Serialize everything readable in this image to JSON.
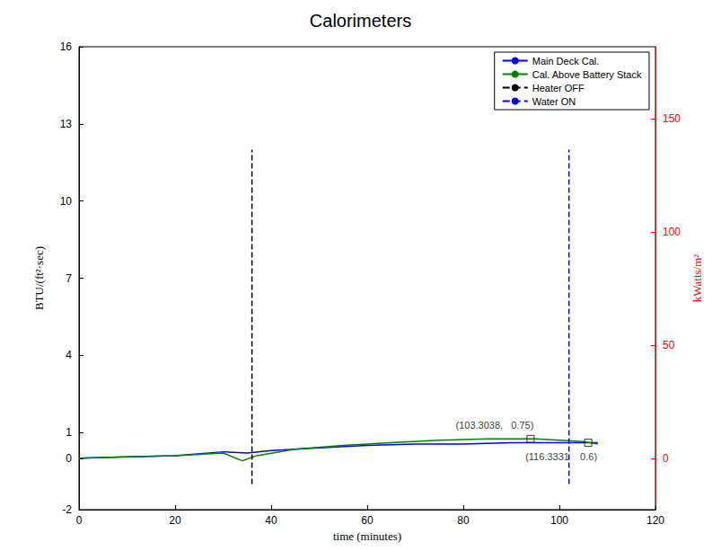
{
  "chart_data": {
    "type": "line",
    "title": "Calorimeters",
    "x_label": "time (minutes)",
    "y_label": "BTU/(ft²·sec)",
    "y2_label": "kWatts/m²",
    "xlim": [
      0,
      120
    ],
    "xticks": [
      0,
      20,
      40,
      60,
      80,
      100,
      120
    ],
    "ylim": [
      -2,
      16
    ],
    "yticks": [
      -2,
      0,
      1,
      4,
      7,
      10,
      13,
      16
    ],
    "y2lim": [
      -22.71,
      181.71
    ],
    "y2ticks": [
      0,
      50,
      100,
      150
    ],
    "grid": false,
    "legend": "upper right",
    "series": [
      {
        "name": "Main Deck Cal.",
        "color": "#0000ff",
        "line_style": "solid",
        "x": [
          0,
          10,
          20,
          30,
          35,
          40,
          50,
          60,
          70,
          80,
          90,
          100,
          108
        ],
        "values": [
          0,
          0.05,
          0.1,
          0.25,
          0.2,
          0.3,
          0.4,
          0.5,
          0.55,
          0.55,
          0.6,
          0.6,
          0.6
        ]
      },
      {
        "name": "Cal. Above Battery Stack",
        "color": "#008000",
        "line_style": "solid",
        "x": [
          0,
          10,
          20,
          30,
          34,
          37,
          45,
          55,
          65,
          75,
          85,
          95,
          100,
          105,
          108
        ],
        "values": [
          0,
          0.05,
          0.1,
          0.2,
          -0.1,
          0.1,
          0.35,
          0.5,
          0.6,
          0.7,
          0.75,
          0.75,
          0.7,
          0.65,
          0.55
        ]
      },
      {
        "name": "Heater OFF",
        "color": "#000000",
        "line_style": "dashed",
        "x": [
          36,
          36
        ],
        "values": [
          -1,
          12
        ]
      },
      {
        "name": "Water ON",
        "color": "#0000ff",
        "line_style": "dashed",
        "x": [
          102,
          102
        ],
        "values": [
          -1,
          12
        ]
      }
    ],
    "annotations": [
      {
        "text": "(103.3038,   0.75)",
        "x": 94,
        "y": 0.75
      },
      {
        "text": "(116.3331    0.6)",
        "x": 106,
        "y": 0.6
      }
    ]
  }
}
